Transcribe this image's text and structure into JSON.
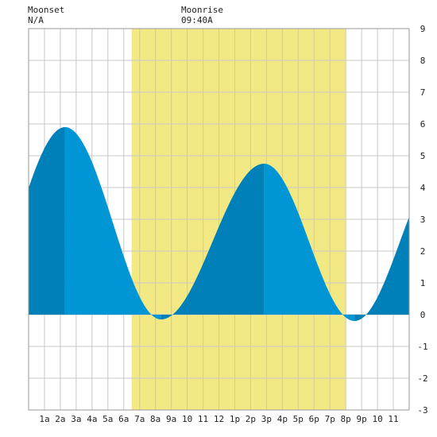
{
  "header": {
    "moonset_label": "Moonset",
    "moonset_value": "N/A",
    "moonrise_label": "Moonrise",
    "moonrise_value": "09:40A"
  },
  "colors": {
    "daylight": "#f2e884",
    "tide_light": "#0096d6",
    "tide_dark": "#0080b8",
    "grid": "#c8c8c8",
    "background": "#ffffff"
  },
  "chart_data": {
    "type": "area",
    "title": "",
    "xlabel": "",
    "ylabel": "",
    "xlim": [
      0,
      24
    ],
    "ylim": [
      -3,
      9
    ],
    "grid": true,
    "y_ticks": [
      -3,
      -2,
      -1,
      0,
      1,
      2,
      3,
      4,
      5,
      6,
      7,
      8,
      9
    ],
    "x_ticks": [
      {
        "hour": 1,
        "label": "1a"
      },
      {
        "hour": 2,
        "label": "2a"
      },
      {
        "hour": 3,
        "label": "3a"
      },
      {
        "hour": 4,
        "label": "4a"
      },
      {
        "hour": 5,
        "label": "5a"
      },
      {
        "hour": 6,
        "label": "6a"
      },
      {
        "hour": 7,
        "label": "7a"
      },
      {
        "hour": 8,
        "label": "8a"
      },
      {
        "hour": 9,
        "label": "9a"
      },
      {
        "hour": 10,
        "label": "10"
      },
      {
        "hour": 11,
        "label": "11"
      },
      {
        "hour": 12,
        "label": "12"
      },
      {
        "hour": 13,
        "label": "1p"
      },
      {
        "hour": 14,
        "label": "2p"
      },
      {
        "hour": 15,
        "label": "3p"
      },
      {
        "hour": 16,
        "label": "4p"
      },
      {
        "hour": 17,
        "label": "5p"
      },
      {
        "hour": 18,
        "label": "6p"
      },
      {
        "hour": 19,
        "label": "7p"
      },
      {
        "hour": 20,
        "label": "8p"
      },
      {
        "hour": 21,
        "label": "9p"
      },
      {
        "hour": 22,
        "label": "10"
      },
      {
        "hour": 23,
        "label": "11"
      }
    ],
    "daylight": {
      "start_hour": 6.5,
      "end_hour": 20.0
    },
    "tide_extremes": [
      {
        "hour": 2.3,
        "height": 5.9,
        "type": "high"
      },
      {
        "hour": 8.35,
        "height": -0.15,
        "type": "low"
      },
      {
        "hour": 14.85,
        "height": 4.75,
        "type": "high"
      },
      {
        "hour": 20.55,
        "height": -0.2,
        "type": "low"
      }
    ],
    "start_height": 4.45,
    "end_height": 3.1
  }
}
